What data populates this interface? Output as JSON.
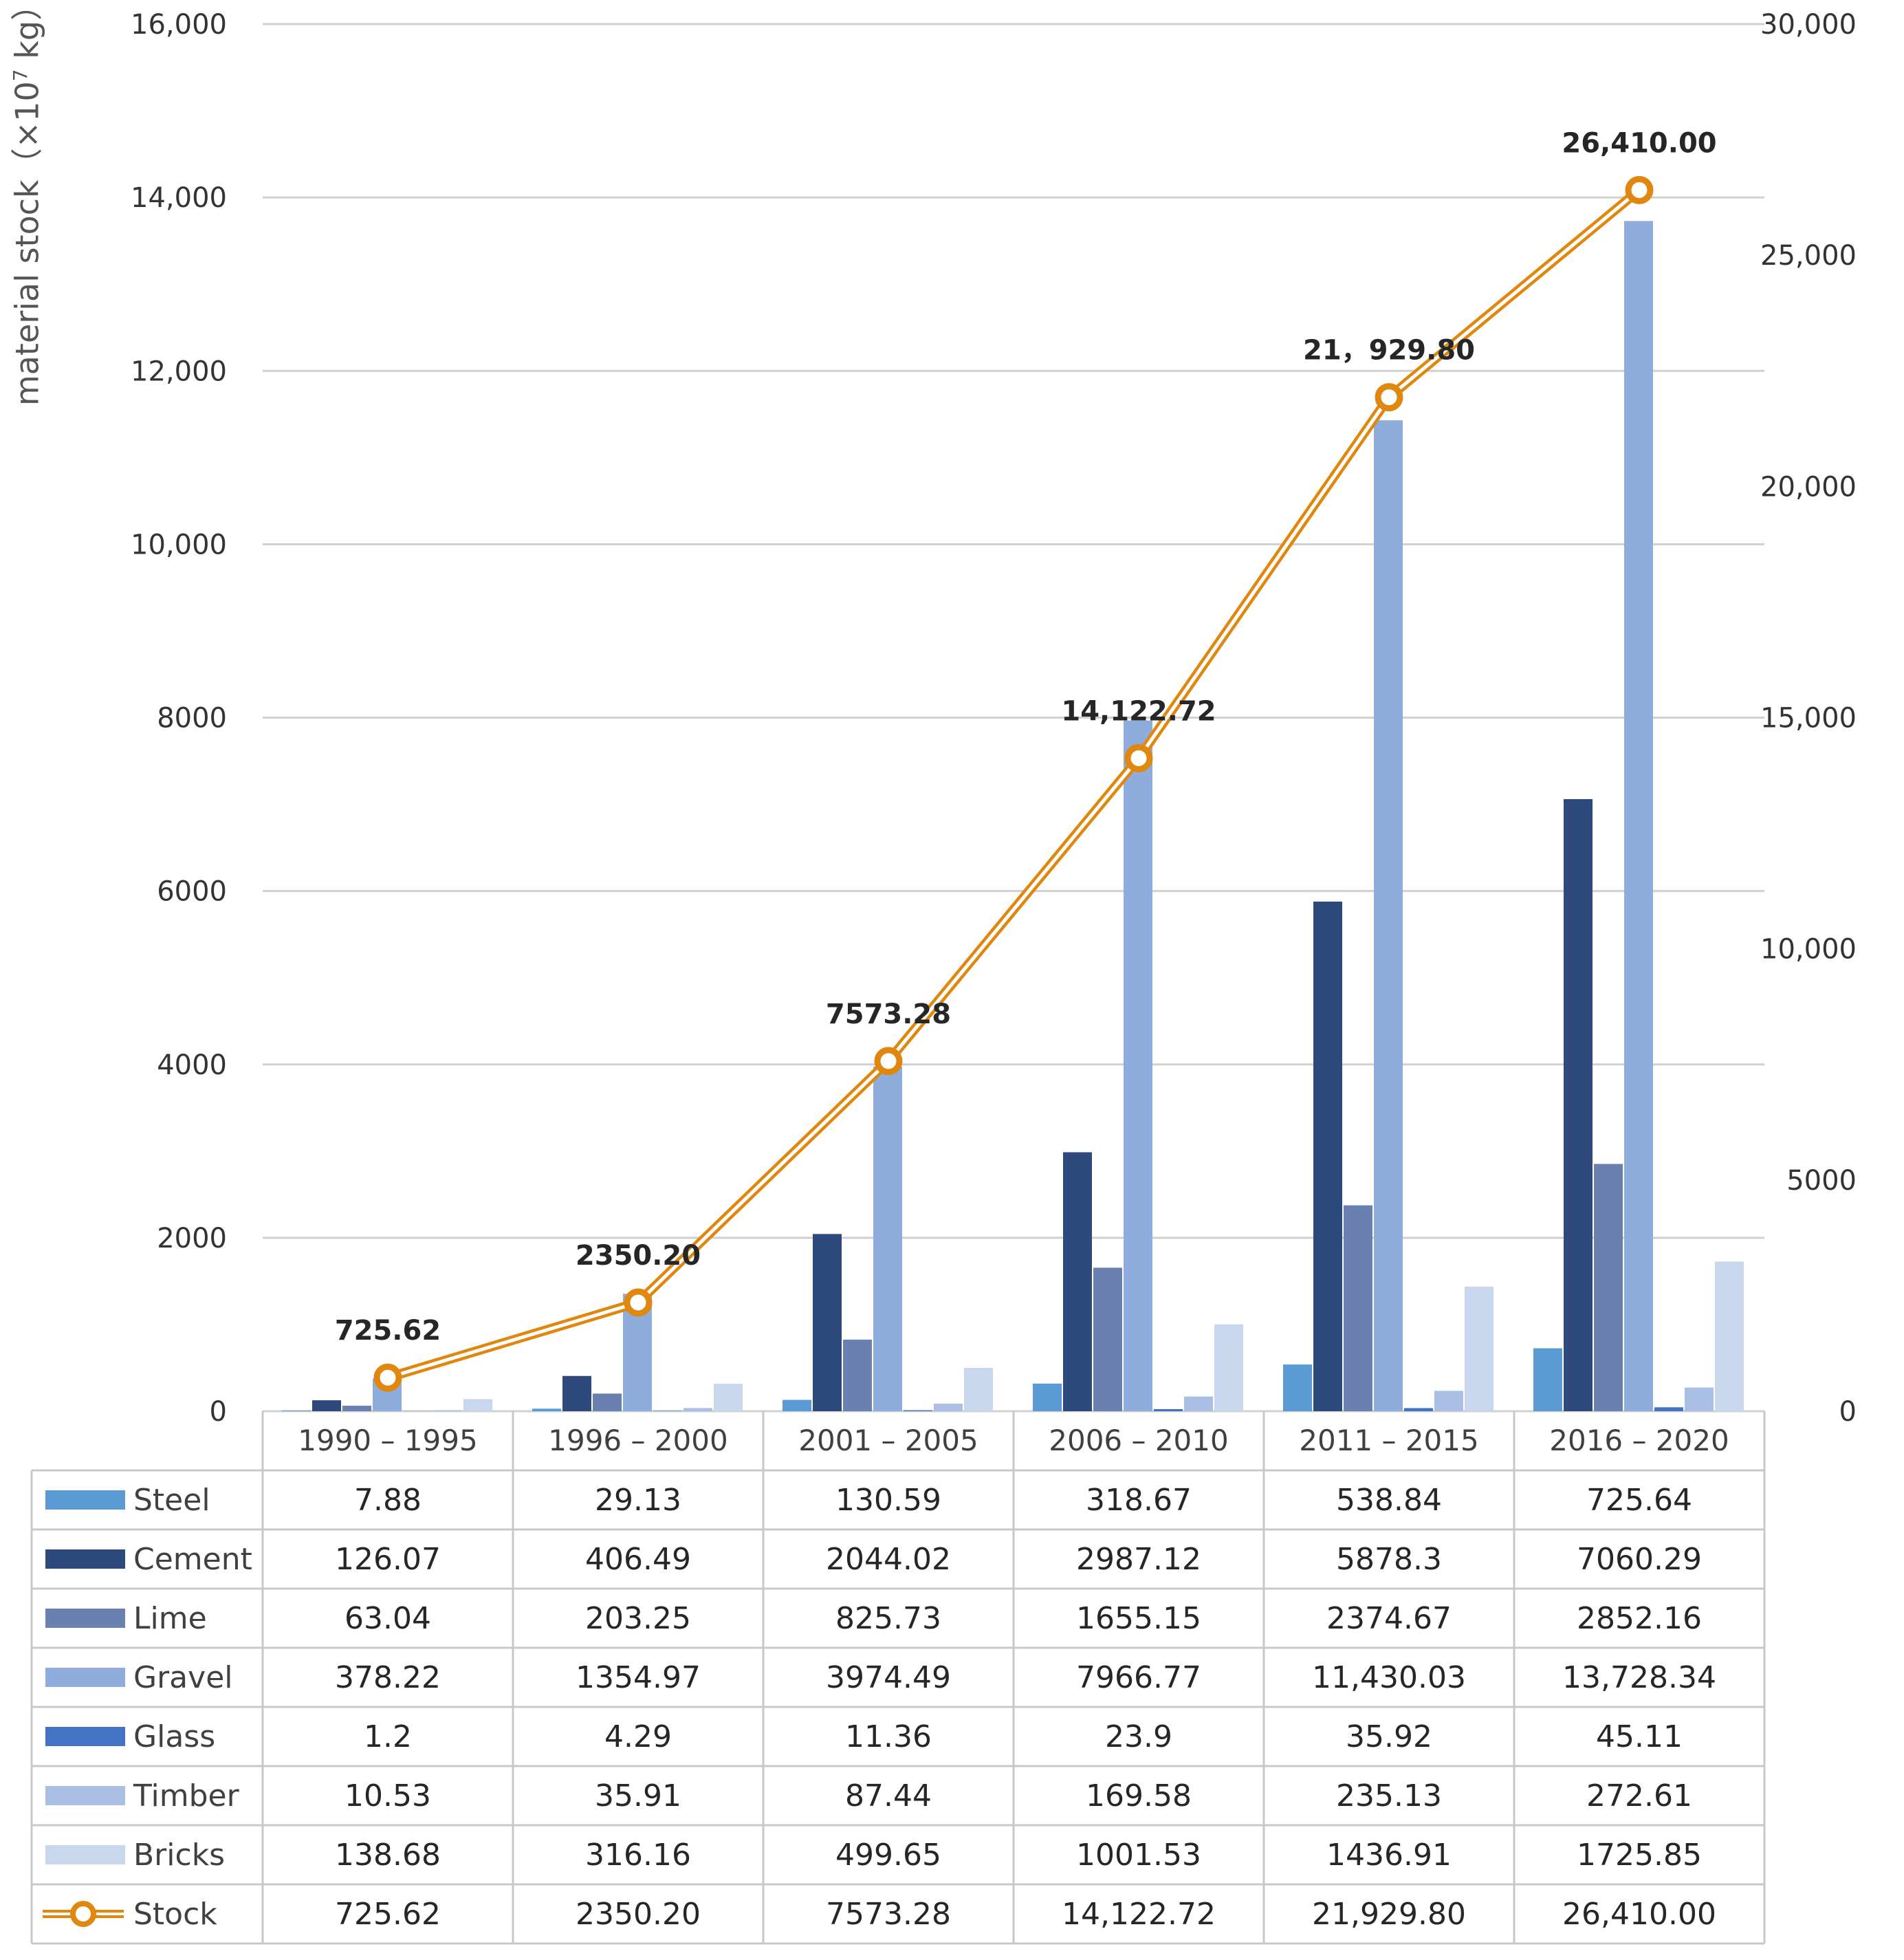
{
  "chart_data": {
    "type": "bar",
    "title": "",
    "ylabel": {
      "main": "material  stock",
      "unit_prefix": "（×10",
      "unit_exp": "7",
      "unit_suffix": " kg）"
    },
    "categories": [
      "1990 – 1995",
      "1996 – 2000",
      "2001 – 2005",
      "2006 – 2010",
      "2011 – 2015",
      "2016 – 2020"
    ],
    "ylim_left": [
      0,
      16000
    ],
    "ylim_right": [
      0,
      30000
    ],
    "left_ticks": [
      {
        "v": 0,
        "t": "0"
      },
      {
        "v": 2000,
        "t": "2000"
      },
      {
        "v": 4000,
        "t": "4000"
      },
      {
        "v": 6000,
        "t": "6000"
      },
      {
        "v": 8000,
        "t": "8000"
      },
      {
        "v": 10000,
        "t": "10,000"
      },
      {
        "v": 12000,
        "t": "12,000"
      },
      {
        "v": 14000,
        "t": "14,000"
      },
      {
        "v": 16000,
        "t": "16,000"
      }
    ],
    "right_ticks": [
      {
        "v": 0,
        "t": "0"
      },
      {
        "v": 5000,
        "t": "5000"
      },
      {
        "v": 10000,
        "t": "10,000"
      },
      {
        "v": 15000,
        "t": "15,000"
      },
      {
        "v": 20000,
        "t": "20,000"
      },
      {
        "v": 25000,
        "t": "25,000"
      },
      {
        "v": 30000,
        "t": "30,000"
      }
    ],
    "series": [
      {
        "name": "Steel",
        "color": "#5B9BD5",
        "values": [
          7.88,
          29.13,
          130.59,
          318.67,
          538.84,
          725.64
        ],
        "labels": [
          "7.88",
          "29.13",
          "130.59",
          "318.67",
          "538.84",
          "725.64"
        ]
      },
      {
        "name": "Cement",
        "color": "#2E4A7D",
        "values": [
          126.07,
          406.49,
          2044.02,
          2987.12,
          5878.3,
          7060.29
        ],
        "labels": [
          "126.07",
          "406.49",
          "2044.02",
          "2987.12",
          "5878.3",
          "7060.29"
        ]
      },
      {
        "name": "Lime",
        "color": "#6A80B0",
        "values": [
          63.04,
          203.25,
          825.73,
          1655.15,
          2374.67,
          2852.16
        ],
        "labels": [
          "63.04",
          "203.25",
          "825.73",
          "1655.15",
          "2374.67",
          "2852.16"
        ]
      },
      {
        "name": "Gravel",
        "color": "#8FADDC",
        "values": [
          378.22,
          1354.97,
          3974.49,
          7966.77,
          11430.03,
          13728.34
        ],
        "labels": [
          "378.22",
          "1354.97",
          "3974.49",
          "7966.77",
          "11,430.03",
          "13,728.34"
        ]
      },
      {
        "name": "Glass",
        "color": "#4472C4",
        "values": [
          1.2,
          4.29,
          11.36,
          23.9,
          35.92,
          45.11
        ],
        "labels": [
          "1.2",
          "4.29",
          "11.36",
          "23.9",
          "35.92",
          "45.11"
        ]
      },
      {
        "name": "Timber",
        "color": "#A9BFE3",
        "values": [
          10.53,
          35.91,
          87.44,
          169.58,
          235.13,
          272.61
        ],
        "labels": [
          "10.53",
          "35.91",
          "87.44",
          "169.58",
          "235.13",
          "272.61"
        ]
      },
      {
        "name": "Bricks",
        "color": "#C8D6EE",
        "values": [
          138.68,
          316.16,
          499.65,
          1001.53,
          1436.91,
          1725.85
        ],
        "labels": [
          "138.68",
          "316.16",
          "499.65",
          "1001.53",
          "1436.91",
          "1725.85"
        ]
      }
    ],
    "line": {
      "name": "Stock",
      "axis": "right",
      "color": "#E0870F",
      "values": [
        725.62,
        2350.2,
        7573.28,
        14122.72,
        21929.8,
        26410.0
      ],
      "labels": [
        "725.62",
        "2350.20",
        "7573.28",
        "14,122.72",
        "21,929.80",
        "26,410.00"
      ],
      "point_labels": [
        "725.62",
        "2350.20",
        "7573.28",
        "14,122.72",
        "21，929.80",
        "26,410.00"
      ]
    },
    "data_table": true,
    "grid": true
  }
}
